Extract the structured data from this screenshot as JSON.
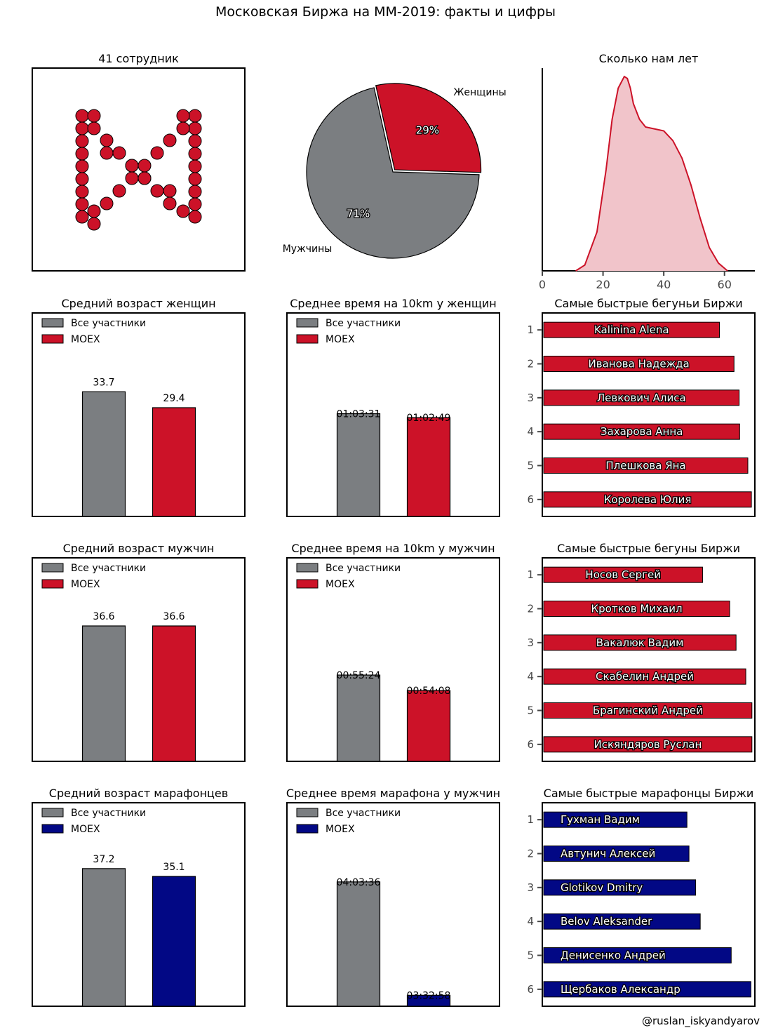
{
  "page_title": "Московская Биржа на ММ-2019: факты и цифры",
  "credit": "@ruslan_iskyandyarov",
  "colors": {
    "moex_red": "#cc1228",
    "moex_blue": "#020885",
    "gray": "#7b7e81",
    "density_fill": "#f1c4ca"
  },
  "chart_data": [
    {
      "id": "employees",
      "type": "scatter",
      "title": "41 сотрудник",
      "marker_count": 41,
      "color": "#cc1228"
    },
    {
      "id": "gender",
      "type": "pie",
      "title": "",
      "slices": [
        {
          "label": "Женщины",
          "value": 29,
          "pct_label": "29%",
          "color": "#cc1228"
        },
        {
          "label": "Мужчины",
          "value": 71,
          "pct_label": "71%",
          "color": "#7b7e81"
        }
      ]
    },
    {
      "id": "age_density",
      "type": "area",
      "title": "Сколько нам лет",
      "xlim": [
        0,
        70
      ],
      "xticks": [
        0,
        20,
        40,
        60
      ],
      "x": [
        11,
        14,
        18,
        21,
        23,
        25,
        27,
        28,
        29,
        30,
        32,
        34,
        37,
        40,
        43,
        46,
        49,
        52,
        55,
        58,
        61
      ],
      "y": [
        0,
        0.03,
        0.2,
        0.52,
        0.78,
        0.94,
        1.0,
        0.99,
        0.94,
        0.86,
        0.78,
        0.74,
        0.73,
        0.72,
        0.67,
        0.58,
        0.44,
        0.27,
        0.12,
        0.04,
        0
      ]
    },
    {
      "id": "age_women",
      "type": "bar",
      "title": "Средний возраст женщин",
      "categories": [
        "Все участники",
        "MOEX"
      ],
      "values": [
        33.7,
        29.4
      ],
      "labels": [
        "33.7",
        "29.4"
      ],
      "ylim": [
        0,
        55
      ],
      "colors": [
        "#7b7e81",
        "#cc1228"
      ]
    },
    {
      "id": "time10_women",
      "type": "bar",
      "title": "Среднее время на 10km у женщин",
      "categories": [
        "Все участники",
        "MOEX"
      ],
      "values": [
        3811,
        3769
      ],
      "labels": [
        "01:03:31",
        "01:02:49"
      ],
      "ylim": [
        2700,
        4900
      ],
      "colors": [
        "#7b7e81",
        "#cc1228"
      ]
    },
    {
      "id": "fast_women",
      "type": "barh",
      "title": "Самые быстрые бегуньи Биржи",
      "ranks": [
        "1",
        "2",
        "3",
        "4",
        "5",
        "6"
      ],
      "names": [
        "Kalinina Alena",
        "Иванова Надежда",
        "Левкович Алиса",
        "Захарова Анна",
        "Плешкова Яна",
        "Королева Юлия"
      ],
      "values": [
        68.7,
        74.4,
        76.4,
        76.6,
        79.8,
        81.2
      ],
      "xlim": [
        0,
        82
      ],
      "color": "#cc1228"
    },
    {
      "id": "age_men",
      "type": "bar",
      "title": "Средний возраст мужчин",
      "categories": [
        "Все участники",
        "MOEX"
      ],
      "values": [
        36.6,
        36.6
      ],
      "labels": [
        "36.6",
        "36.6"
      ],
      "ylim": [
        0,
        55
      ],
      "colors": [
        "#7b7e81",
        "#cc1228"
      ]
    },
    {
      "id": "time10_men",
      "type": "bar",
      "title": "Среднее время на 10km у мужчин",
      "categories": [
        "Все участники",
        "MOEX"
      ],
      "values": [
        3324,
        3248
      ],
      "labels": [
        "00:55:24",
        "00:54:08"
      ],
      "ylim": [
        2900,
        3900
      ],
      "colors": [
        "#7b7e81",
        "#cc1228"
      ]
    },
    {
      "id": "fast_men",
      "type": "barh",
      "title": "Самые быстрые бегуны Биржи",
      "ranks": [
        "1",
        "2",
        "3",
        "4",
        "5",
        "6"
      ],
      "names": [
        "Носов Сергей",
        "Кротков Михаил",
        "Вакалюк Вадим",
        "Скабелин Андрей",
        "Брагинский Андрей",
        "Искяндяров Руслан"
      ],
      "values": [
        62.1,
        72.7,
        75.2,
        79.0,
        81.4,
        81.4
      ],
      "xlim": [
        0,
        82
      ],
      "color": "#cc1228"
    },
    {
      "id": "age_marathon",
      "type": "bar",
      "title": "Средний возраст марафонцев",
      "categories": [
        "Все участники",
        "MOEX"
      ],
      "values": [
        37.2,
        35.1
      ],
      "labels": [
        "37.2",
        "35.1"
      ],
      "ylim": [
        0,
        55
      ],
      "colors": [
        "#7b7e81",
        "#020885"
      ]
    },
    {
      "id": "time_marathon",
      "type": "bar",
      "title": "Среднее время марафона у мужчин",
      "categories": [
        "Все участники",
        "MOEX"
      ],
      "values": [
        14616,
        12778
      ],
      "labels": [
        "04:03:36",
        "03:32:58"
      ],
      "ylim": [
        12600,
        15900
      ],
      "colors": [
        "#7b7e81",
        "#020885"
      ]
    },
    {
      "id": "fast_marathon",
      "type": "barh",
      "title": "Самые быстрые марафонцы Биржи",
      "ranks": [
        "1",
        "2",
        "3",
        "4",
        "5",
        "6"
      ],
      "names": [
        "Гухман Вадим",
        "Автунич Алексей",
        "Glotikov Dmitry",
        "Belov Aleksander",
        "Денисенко Андрей",
        "Щербаков Александр"
      ],
      "values": [
        56.0,
        56.8,
        59.4,
        61.2,
        73.3,
        81.0
      ],
      "xlim": [
        0,
        82
      ],
      "color": "#020885"
    }
  ]
}
